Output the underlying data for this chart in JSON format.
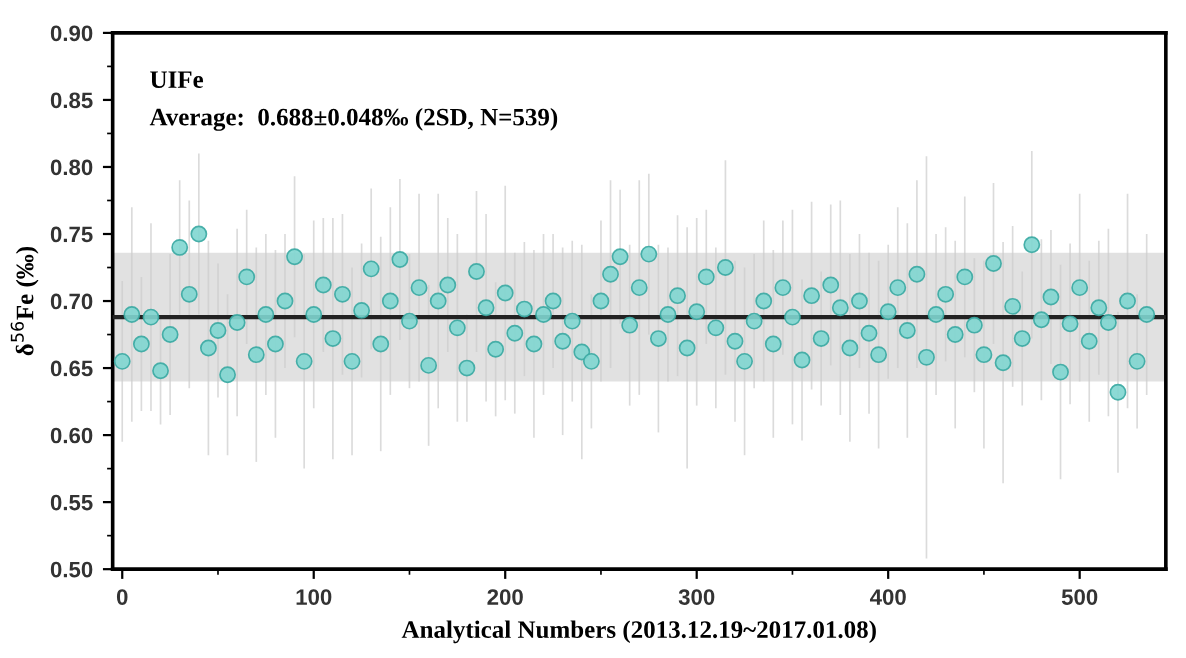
{
  "chart_data": {
    "type": "scatter",
    "xlabel": "Analytical Numbers (2013.12.19~2017.01.08)",
    "ylabel": "δ$^{56}$Fe (‰)",
    "annotations": [
      "UIFe",
      "Average:  0.688±0.048‰ (2SD, N=539)"
    ],
    "x": [
      0,
      5,
      10,
      15,
      20,
      25,
      30,
      35,
      40,
      45,
      50,
      55,
      60,
      65,
      70,
      75,
      80,
      85,
      90,
      95,
      100,
      105,
      110,
      115,
      120,
      125,
      130,
      135,
      140,
      145,
      150,
      155,
      160,
      165,
      170,
      175,
      180,
      185,
      190,
      195,
      200,
      205,
      210,
      215,
      220,
      225,
      230,
      235,
      240,
      245,
      250,
      255,
      260,
      265,
      270,
      275,
      280,
      285,
      290,
      295,
      300,
      305,
      310,
      315,
      320,
      325,
      330,
      335,
      340,
      345,
      350,
      355,
      360,
      365,
      370,
      375,
      380,
      385,
      390,
      395,
      400,
      405,
      410,
      415,
      420,
      425,
      430,
      435,
      440,
      445,
      450,
      455,
      460,
      465,
      470,
      475,
      480,
      485,
      490,
      495,
      500,
      505,
      510,
      515,
      520,
      525,
      530,
      535
    ],
    "series": [
      {
        "color": "#7fd6d0",
        "values": [
          0.655,
          0.69,
          0.668,
          0.688,
          0.648,
          0.675,
          0.74,
          0.705,
          0.75,
          0.665,
          0.678,
          0.645,
          0.684,
          0.718,
          0.66,
          0.69,
          0.668,
          0.7,
          0.733,
          0.655,
          0.69,
          0.712,
          0.672,
          0.705,
          0.655,
          0.693,
          0.724,
          0.668,
          0.7,
          0.731,
          0.685,
          0.71,
          0.652,
          0.7,
          0.712,
          0.68,
          0.65,
          0.722,
          0.695,
          0.664,
          0.706,
          0.676,
          0.694,
          0.668,
          0.69,
          0.7,
          0.67,
          0.685,
          0.662,
          0.655,
          0.7,
          0.72,
          0.733,
          0.682,
          0.71,
          0.735,
          0.672,
          0.69,
          0.704,
          0.665,
          0.692,
          0.718,
          0.68,
          0.725,
          0.67,
          0.655,
          0.685,
          0.7,
          0.668,
          0.71,
          0.688,
          0.656,
          0.704,
          0.672,
          0.712,
          0.695,
          0.665,
          0.7,
          0.676,
          0.66,
          0.692,
          0.71,
          0.678,
          0.72,
          0.658,
          0.69,
          0.705,
          0.675,
          0.718,
          0.682,
          0.66,
          0.728,
          0.654,
          0.696,
          0.672,
          0.742,
          0.686,
          0.703,
          0.647,
          0.683,
          0.71,
          0.67,
          0.695,
          0.684,
          0.632,
          0.7,
          0.655,
          0.69
        ],
        "errors": [
          0.06,
          0.08,
          0.05,
          0.07,
          0.04,
          0.06,
          0.05,
          0.07,
          0.06,
          0.08,
          0.05,
          0.06,
          0.07,
          0.05,
          0.08,
          0.06,
          0.07,
          0.05,
          0.06,
          0.08,
          0.07,
          0.05,
          0.09,
          0.06,
          0.07,
          0.05,
          0.06,
          0.08,
          0.07,
          0.06,
          0.05,
          0.07,
          0.06,
          0.08,
          0.05,
          0.07,
          0.04,
          0.06,
          0.07,
          0.05,
          0.08,
          0.06,
          0.05,
          0.07,
          0.06,
          0.05,
          0.07,
          0.06,
          0.08,
          0.05,
          0.06,
          0.07,
          0.05,
          0.06,
          0.08,
          0.06,
          0.07,
          0.05,
          0.06,
          0.09,
          0.07,
          0.05,
          0.06,
          0.08,
          0.06,
          0.07,
          0.05,
          0.06,
          0.07,
          0.05,
          0.08,
          0.06,
          0.07,
          0.05,
          0.06,
          0.08,
          0.07,
          0.05,
          0.06,
          0.07,
          0.05,
          0.06,
          0.08,
          0.07,
          0.15,
          0.06,
          0.05,
          0.07,
          0.06,
          0.05,
          0.07,
          0.06,
          0.09,
          0.06,
          0.05,
          0.07,
          0.06,
          0.05,
          0.08,
          0.06,
          0.07,
          0.06,
          0.05,
          0.07,
          0.06,
          0.08,
          0.05,
          0.06
        ]
      }
    ],
    "xlim": [
      -5,
      545
    ],
    "xticks": [
      0,
      100,
      200,
      300,
      400,
      500
    ],
    "ylim": [
      0.5,
      0.9
    ],
    "yticks": [
      {
        "value": 0.5,
        "label": "0.50"
      },
      0.55,
      {
        "value": 0.6,
        "label": "0.60"
      },
      0.65,
      {
        "value": 0.7,
        "label": "0.70"
      },
      0.75,
      {
        "value": 0.8,
        "label": "0.80"
      },
      0.85,
      {
        "value": 0.9,
        "label": "0.90"
      }
    ],
    "ref_lines": [
      {
        "axis": "y",
        "value": 0.688,
        "color": "#222222",
        "line_style": "solid"
      }
    ],
    "bands": [
      {
        "axis": "y",
        "from": 0.64,
        "to": 0.736,
        "color": "#d9d9d9"
      }
    ],
    "marker": "circle",
    "grid": false,
    "legend": false
  }
}
